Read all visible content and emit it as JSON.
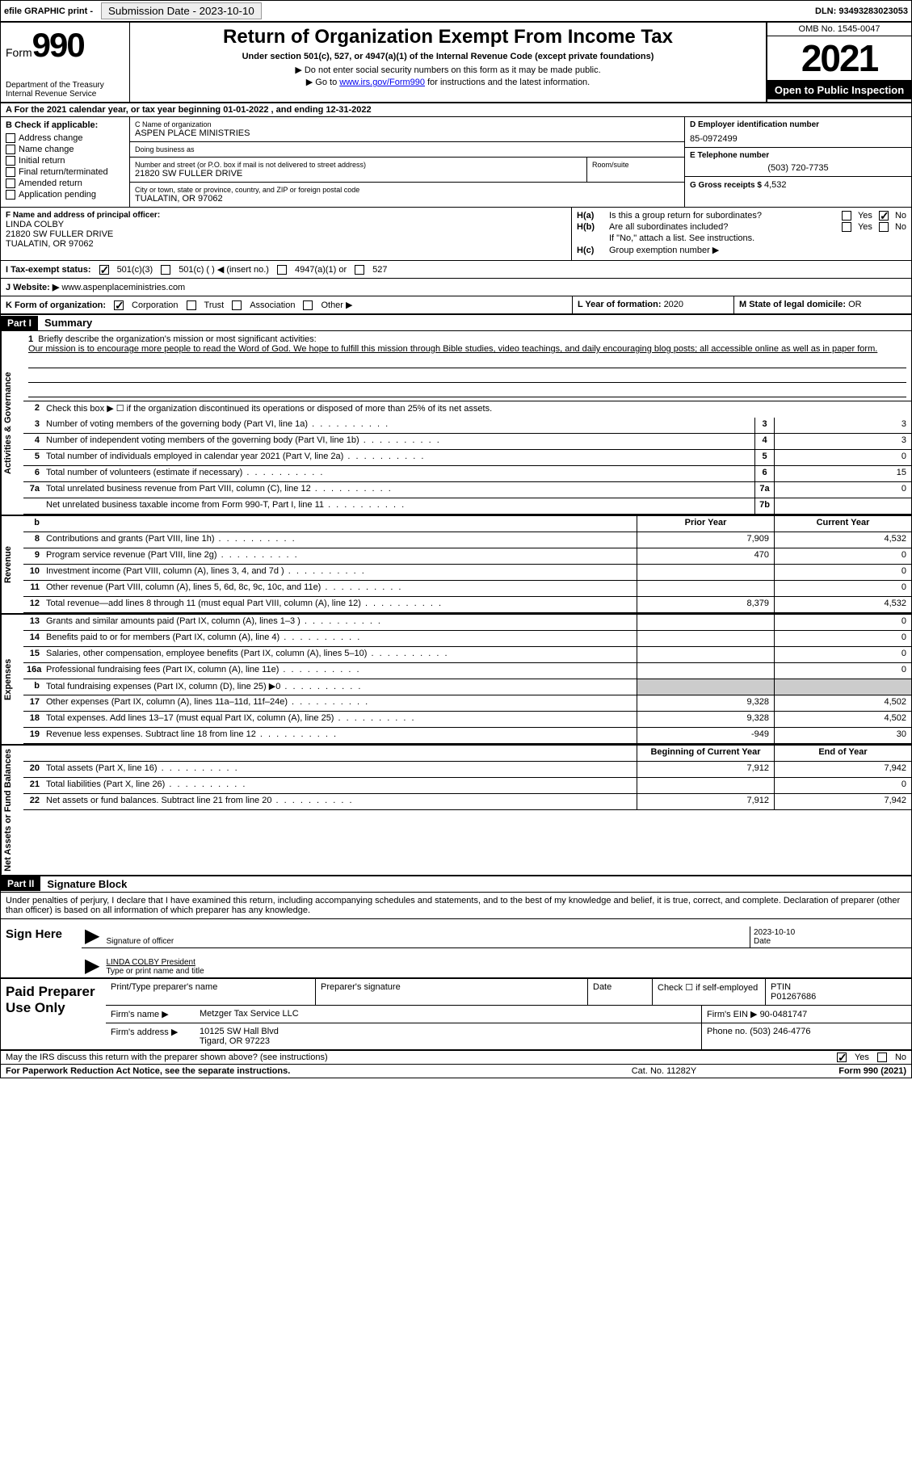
{
  "topbar": {
    "efile": "efile GRAPHIC print -",
    "btn": "Submission Date - 2023-10-10",
    "dln": "DLN: 93493283023053"
  },
  "header": {
    "form_label": "Form",
    "form_num": "990",
    "dept": "Department of the Treasury Internal Revenue Service",
    "title": "Return of Organization Exempt From Income Tax",
    "sub": "Under section 501(c), 527, or 4947(a)(1) of the Internal Revenue Code (except private foundations)",
    "note1": "▶ Do not enter social security numbers on this form as it may be made public.",
    "note2_pre": "▶ Go to ",
    "note2_link": "www.irs.gov/Form990",
    "note2_post": " for instructions and the latest information.",
    "omb": "OMB No. 1545-0047",
    "year": "2021",
    "inspect": "Open to Public Inspection"
  },
  "row_a": "A  For the 2021 calendar year, or tax year beginning 01-01-2022    , and ending 12-31-2022",
  "col_b": {
    "label": "B Check if applicable:",
    "opts": [
      "Address change",
      "Name change",
      "Initial return",
      "Final return/terminated",
      "Amended return",
      "Application pending"
    ]
  },
  "col_c": {
    "name_label": "C Name of organization",
    "name": "ASPEN PLACE MINISTRIES",
    "dba_label": "Doing business as",
    "dba": "",
    "addr_label": "Number and street (or P.O. box if mail is not delivered to street address)",
    "addr": "21820 SW FULLER DRIVE",
    "room_label": "Room/suite",
    "room": "",
    "city_label": "City or town, state or province, country, and ZIP or foreign postal code",
    "city": "TUALATIN, OR  97062"
  },
  "col_de": {
    "d_label": "D Employer identification number",
    "d_val": "85-0972499",
    "e_label": "E Telephone number",
    "e_val": "(503) 720-7735",
    "g_label": "G Gross receipts $",
    "g_val": "4,532"
  },
  "section_f": {
    "label": "F Name and address of principal officer:",
    "name": "LINDA COLBY",
    "addr1": "21820 SW FULLER DRIVE",
    "addr2": "TUALATIN, OR  97062"
  },
  "section_h": {
    "ha_label": "H(a)",
    "ha_text": "Is this a group return for subordinates?",
    "hb_label": "H(b)",
    "hb_text": "Are all subordinates included?",
    "hb_note": "If \"No,\" attach a list. See instructions.",
    "hc_label": "H(c)",
    "hc_text": "Group exemption number ▶",
    "yes": "Yes",
    "no": "No"
  },
  "row_i": {
    "label": "I   Tax-exempt status:",
    "opt1": "501(c)(3)",
    "opt2": "501(c) (  ) ◀ (insert no.)",
    "opt3": "4947(a)(1) or",
    "opt4": "527"
  },
  "row_j": {
    "label": "J   Website: ▶",
    "val": " www.aspenplaceministries.com"
  },
  "row_k": {
    "label": "K Form of organization:",
    "opts": [
      "Corporation",
      "Trust",
      "Association",
      "Other ▶"
    ],
    "l_label": "L Year of formation: ",
    "l_val": "2020",
    "m_label": "M State of legal domicile: ",
    "m_val": "OR"
  },
  "part1": {
    "hdr": "Part I",
    "title": "Summary",
    "line1_label": "1",
    "line1_intro": "Briefly describe the organization's mission or most significant activities:",
    "line1_text": "Our mission is to encourage more people to read the Word of God. We hope to fulfill this mission through Bible studies, video teachings, and daily encouraging blog posts; all accessible online as well as in paper form.",
    "line2_label": "2",
    "line2_text": "Check this box ▶ ☐  if the organization discontinued its operations or disposed of more than 25% of its net assets.",
    "lines_ag": [
      {
        "n": "3",
        "t": "Number of voting members of the governing body (Part VI, line 1a)",
        "box": "3",
        "v": "3"
      },
      {
        "n": "4",
        "t": "Number of independent voting members of the governing body (Part VI, line 1b)",
        "box": "4",
        "v": "3"
      },
      {
        "n": "5",
        "t": "Total number of individuals employed in calendar year 2021 (Part V, line 2a)",
        "box": "5",
        "v": "0"
      },
      {
        "n": "6",
        "t": "Total number of volunteers (estimate if necessary)",
        "box": "6",
        "v": "15"
      },
      {
        "n": "7a",
        "t": "Total unrelated business revenue from Part VIII, column (C), line 12",
        "box": "7a",
        "v": "0"
      },
      {
        "n": "",
        "t": "Net unrelated business taxable income from Form 990-T, Part I, line 11",
        "box": "7b",
        "v": ""
      }
    ],
    "col_prior": "Prior Year",
    "col_current": "Current Year",
    "lines_rev": [
      {
        "n": "8",
        "t": "Contributions and grants (Part VIII, line 1h)",
        "p": "7,909",
        "c": "4,532"
      },
      {
        "n": "9",
        "t": "Program service revenue (Part VIII, line 2g)",
        "p": "470",
        "c": "0"
      },
      {
        "n": "10",
        "t": "Investment income (Part VIII, column (A), lines 3, 4, and 7d )",
        "p": "",
        "c": "0"
      },
      {
        "n": "11",
        "t": "Other revenue (Part VIII, column (A), lines 5, 6d, 8c, 9c, 10c, and 11e)",
        "p": "",
        "c": "0"
      },
      {
        "n": "12",
        "t": "Total revenue—add lines 8 through 11 (must equal Part VIII, column (A), line 12)",
        "p": "8,379",
        "c": "4,532"
      }
    ],
    "lines_exp": [
      {
        "n": "13",
        "t": "Grants and similar amounts paid (Part IX, column (A), lines 1–3 )",
        "p": "",
        "c": "0"
      },
      {
        "n": "14",
        "t": "Benefits paid to or for members (Part IX, column (A), line 4)",
        "p": "",
        "c": "0"
      },
      {
        "n": "15",
        "t": "Salaries, other compensation, employee benefits (Part IX, column (A), lines 5–10)",
        "p": "",
        "c": "0"
      },
      {
        "n": "16a",
        "t": "Professional fundraising fees (Part IX, column (A), line 11e)",
        "p": "",
        "c": "0"
      },
      {
        "n": "b",
        "t": "Total fundraising expenses (Part IX, column (D), line 25) ▶0",
        "p": "shade",
        "c": "shade"
      },
      {
        "n": "17",
        "t": "Other expenses (Part IX, column (A), lines 11a–11d, 11f–24e)",
        "p": "9,328",
        "c": "4,502"
      },
      {
        "n": "18",
        "t": "Total expenses. Add lines 13–17 (must equal Part IX, column (A), line 25)",
        "p": "9,328",
        "c": "4,502"
      },
      {
        "n": "19",
        "t": "Revenue less expenses. Subtract line 18 from line 12",
        "p": "-949",
        "c": "30"
      }
    ],
    "col_begin": "Beginning of Current Year",
    "col_end": "End of Year",
    "lines_net": [
      {
        "n": "20",
        "t": "Total assets (Part X, line 16)",
        "p": "7,912",
        "c": "7,942"
      },
      {
        "n": "21",
        "t": "Total liabilities (Part X, line 26)",
        "p": "",
        "c": "0"
      },
      {
        "n": "22",
        "t": "Net assets or fund balances. Subtract line 21 from line 20",
        "p": "7,912",
        "c": "7,942"
      }
    ],
    "vtab_ag": "Activities & Governance",
    "vtab_rev": "Revenue",
    "vtab_exp": "Expenses",
    "vtab_net": "Net Assets or Fund Balances"
  },
  "part2": {
    "hdr": "Part II",
    "title": "Signature Block",
    "intro": "Under penalties of perjury, I declare that I have examined this return, including accompanying schedules and statements, and to the best of my knowledge and belief, it is true, correct, and complete. Declaration of preparer (other than officer) is based on all information of which preparer has any knowledge.",
    "sign_here": "Sign Here",
    "sig_label": "Signature of officer",
    "sig_date": "2023-10-10",
    "date_label": "Date",
    "name_val": "LINDA COLBY President",
    "name_label": "Type or print name and title",
    "paid": "Paid Preparer Use Only",
    "prep_name_label": "Print/Type preparer's name",
    "prep_sig_label": "Preparer's signature",
    "prep_date_label": "Date",
    "prep_check": "Check ☐ if self-employed",
    "ptin_label": "PTIN",
    "ptin_val": "P01267686",
    "firm_name_label": "Firm's name      ▶",
    "firm_name": "Metzger Tax Service LLC",
    "firm_ein_label": "Firm's EIN ▶",
    "firm_ein": "90-0481747",
    "firm_addr_label": "Firm's address ▶",
    "firm_addr": "10125 SW Hall Blvd",
    "firm_addr2": "Tigard, OR  97223",
    "phone_label": "Phone no.",
    "phone": "(503) 246-4776",
    "discuss": "May the IRS discuss this return with the preparer shown above? (see instructions)",
    "yes": "Yes",
    "no": "No"
  },
  "footer": {
    "l": "For Paperwork Reduction Act Notice, see the separate instructions.",
    "m": "Cat. No. 11282Y",
    "r": "Form 990 (2021)"
  }
}
